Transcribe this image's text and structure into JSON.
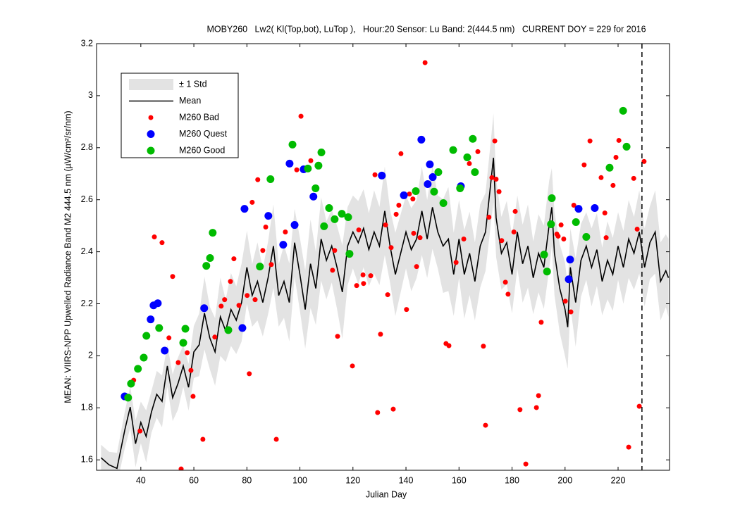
{
  "chart_data": {
    "type": "scatter",
    "title": "MOBY260   Lw2( Kl(Top,bot), LuTop ),   Hour:20 Sensor: Lu Band: 2(444.5 nm)   CURRENT DOY = 229 for 2016",
    "x_label": "Julian Day",
    "y_label": "MEAN: VIIRS-NPP Upwelled Radiance Band M2 444.5 nm (µW/cm²/sr/nm)",
    "xlim": [
      23.3,
      239.4
    ],
    "ylim": [
      1.56,
      3.2
    ],
    "xticks": [
      40,
      60,
      80,
      100,
      120,
      140,
      160,
      180,
      200,
      220
    ],
    "yticks": [
      1.6,
      1.8,
      2,
      2.2,
      2.4,
      2.6,
      2.8,
      3,
      3.2
    ],
    "legend": "upper left",
    "vline": 229,
    "series": [
      {
        "name": "± 1 Std",
        "kind": "band",
        "color": "#e3e3e3",
        "x": [
          25,
          28,
          31,
          34,
          36,
          38,
          40,
          42,
          44,
          46,
          48,
          50,
          52,
          54,
          56,
          58,
          60,
          62,
          64,
          66,
          68,
          70,
          72,
          74,
          76,
          78,
          80,
          82,
          84,
          86,
          88,
          90,
          92,
          94,
          96,
          98,
          100,
          102,
          104,
          106,
          108,
          110,
          112,
          114,
          116,
          118,
          120,
          122,
          124,
          126,
          128,
          130,
          132,
          134,
          136,
          138,
          140,
          142,
          144,
          146,
          148,
          150,
          152,
          154,
          156,
          158,
          160,
          162,
          164,
          166,
          168,
          170,
          172,
          173,
          174,
          176,
          178,
          180,
          182,
          184,
          186,
          188,
          190,
          192,
          194,
          195,
          196,
          198,
          200,
          201,
          202,
          204,
          206,
          208,
          210,
          212,
          214,
          216,
          218,
          220,
          222,
          224,
          226,
          228,
          230,
          232,
          234,
          236,
          238,
          239
        ],
        "values": [
          0.05,
          0.05,
          0.06,
          0.07,
          0.08,
          0.09,
          0.08,
          0.1,
          0.08,
          0.09,
          0.1,
          0.08,
          0.09,
          0.1,
          0.08,
          0.09,
          0.1,
          0.12,
          0.14,
          0.12,
          0.13,
          0.15,
          0.12,
          0.14,
          0.13,
          0.15,
          0.14,
          0.12,
          0.15,
          0.13,
          0.14,
          0.16,
          0.12,
          0.14,
          0.15,
          0.13,
          0.14,
          0.15,
          0.17,
          0.14,
          0.16,
          0.15,
          0.14,
          0.16,
          0.18,
          0.15,
          0.14,
          0.16,
          0.15,
          0.14,
          0.16,
          0.15,
          0.17,
          0.14,
          0.16,
          0.15,
          0.14,
          0.16,
          0.15,
          0.17,
          0.15,
          0.16,
          0.14,
          0.18,
          0.2,
          0.16,
          0.15,
          0.17,
          0.16,
          0.15,
          0.16,
          0.15,
          0.16,
          0.17,
          0.15,
          0.14,
          0.16,
          0.15,
          0.14,
          0.15,
          0.16,
          0.14,
          0.15,
          0.16,
          0.17,
          0.15,
          0.16,
          0.17,
          0.18,
          0.16,
          0.15,
          0.17,
          0.14,
          0.13,
          0.15,
          0.14,
          0.13,
          0.15,
          0.14,
          0.13,
          0.14,
          0.15,
          0.14,
          0.16,
          0.15,
          0.14,
          0.16,
          0.15,
          0.14,
          0.15
        ]
      },
      {
        "name": "Mean",
        "kind": "line",
        "color": "#000000",
        "x": [
          25,
          28,
          31,
          34,
          36,
          38,
          40,
          42,
          44,
          46,
          48,
          50,
          52,
          54,
          56,
          58,
          60,
          62,
          64,
          66,
          68,
          70,
          72,
          74,
          76,
          78,
          80,
          82,
          84,
          86,
          88,
          90,
          92,
          94,
          96,
          98,
          100,
          102,
          104,
          106,
          108,
          110,
          112,
          114,
          116,
          118,
          120,
          122,
          124,
          126,
          128,
          130,
          132,
          134,
          136,
          138,
          140,
          142,
          144,
          146,
          148,
          150,
          152,
          154,
          156,
          158,
          160,
          162,
          164,
          166,
          168,
          170,
          172,
          173,
          174,
          176,
          178,
          180,
          182,
          184,
          186,
          188,
          190,
          192,
          194,
          195,
          196,
          198,
          200,
          201,
          202,
          204,
          206,
          208,
          210,
          212,
          214,
          216,
          218,
          220,
          222,
          224,
          226,
          228,
          230,
          232,
          234,
          236,
          238,
          239
        ],
        "values": [
          1.608,
          1.581,
          1.567,
          1.717,
          1.803,
          1.662,
          1.744,
          1.69,
          1.784,
          1.852,
          1.825,
          1.961,
          1.839,
          1.893,
          1.961,
          1.879,
          2.015,
          2.042,
          2.164,
          2.069,
          2.015,
          2.15,
          2.096,
          2.178,
          2.137,
          2.205,
          2.34,
          2.232,
          2.286,
          2.205,
          2.3,
          2.422,
          2.232,
          2.286,
          2.205,
          2.435,
          2.313,
          2.178,
          2.354,
          2.259,
          2.449,
          2.367,
          2.422,
          2.34,
          2.245,
          2.422,
          2.476,
          2.435,
          2.49,
          2.408,
          2.476,
          2.422,
          2.557,
          2.422,
          2.313,
          2.394,
          2.476,
          2.408,
          2.449,
          2.557,
          2.449,
          2.571,
          2.476,
          2.422,
          2.449,
          2.313,
          2.449,
          2.313,
          2.394,
          2.286,
          2.422,
          2.476,
          2.666,
          2.761,
          2.53,
          2.394,
          2.435,
          2.313,
          2.476,
          2.354,
          2.422,
          2.3,
          2.394,
          2.34,
          2.503,
          2.571,
          2.394,
          2.259,
          2.178,
          2.11,
          2.34,
          2.205,
          2.367,
          2.422,
          2.34,
          2.408,
          2.286,
          2.367,
          2.313,
          2.422,
          2.34,
          2.449,
          2.394,
          2.476,
          2.34,
          2.435,
          2.476,
          2.286,
          2.327,
          2.3
        ]
      },
      {
        "name": "M260 Bad",
        "kind": "points",
        "color": "#ff0000",
        "size": 3.5,
        "x": [
          37.3,
          39.7,
          45.1,
          48.0,
          50.6,
          52.0,
          54.1,
          55.2,
          57.5,
          58.9,
          59.7,
          63.4,
          67.9,
          70.3,
          71.6,
          73.8,
          75.1,
          77.0,
          80.1,
          80.9,
          82.0,
          83.1,
          84.1,
          86.0,
          87.1,
          89.2,
          91.1,
          94.5,
          98.8,
          100.4,
          104.1,
          112.3,
          113.1,
          114.2,
          119.8,
          121.4,
          122.2,
          123.8,
          124.0,
          126.7,
          128.3,
          129.3,
          130.4,
          132.3,
          133.1,
          134.4,
          135.2,
          136.3,
          137.3,
          138.1,
          140.2,
          141.3,
          142.6,
          142.9,
          144.0,
          145.3,
          147.2,
          155.1,
          156.2,
          158.9,
          161.8,
          163.9,
          167.1,
          169.2,
          170.0,
          171.3,
          172.4,
          173.5,
          174.0,
          175.1,
          176.1,
          177.5,
          178.5,
          180.7,
          181.2,
          183.0,
          185.2,
          189.2,
          190.0,
          191.0,
          196.9,
          197.4,
          198.5,
          199.5,
          200.1,
          202.2,
          203.3,
          207.2,
          209.4,
          213.6,
          215.0,
          215.5,
          218.1,
          219.2,
          220.3,
          224.0,
          225.9,
          227.2,
          228.0,
          229.8
        ],
        "values": [
          1.906,
          1.711,
          2.457,
          2.435,
          2.069,
          2.305,
          1.974,
          1.565,
          2.012,
          1.944,
          1.844,
          1.679,
          2.072,
          2.191,
          2.216,
          2.286,
          2.373,
          2.194,
          2.232,
          1.931,
          2.59,
          2.216,
          2.677,
          2.405,
          2.495,
          2.351,
          1.679,
          2.476,
          2.715,
          2.921,
          2.75,
          2.329,
          2.405,
          2.075,
          1.961,
          2.27,
          2.484,
          2.311,
          2.278,
          2.308,
          2.696,
          1.782,
          2.083,
          2.503,
          2.235,
          2.416,
          1.795,
          2.544,
          2.579,
          2.777,
          2.178,
          2.622,
          2.603,
          2.471,
          2.343,
          2.454,
          3.127,
          2.047,
          2.039,
          2.359,
          2.449,
          2.739,
          2.785,
          2.037,
          1.733,
          2.533,
          2.685,
          2.826,
          2.679,
          2.631,
          2.443,
          2.283,
          2.237,
          2.476,
          2.555,
          1.793,
          1.584,
          1.801,
          1.847,
          2.129,
          2.468,
          2.46,
          2.503,
          2.449,
          2.21,
          2.169,
          2.579,
          2.734,
          2.826,
          2.685,
          2.549,
          2.454,
          2.655,
          2.763,
          2.828,
          1.649,
          2.682,
          2.487,
          1.806,
          2.747
        ]
      },
      {
        "name": "M260 Quest",
        "kind": "points",
        "color": "#0000ff",
        "size": 5.5,
        "x": [
          33.9,
          43.7,
          44.8,
          46.4,
          49.0,
          63.9,
          78.3,
          79.1,
          88.1,
          93.7,
          96.1,
          98.0,
          101.4,
          105.1,
          130.9,
          139.2,
          145.8,
          148.2,
          149.0,
          150.1,
          160.7,
          201.4,
          201.9,
          205.1,
          211.2
        ],
        "values": [
          1.844,
          2.14,
          2.194,
          2.202,
          2.02,
          2.183,
          2.107,
          2.565,
          2.538,
          2.427,
          2.739,
          2.503,
          2.717,
          2.612,
          2.693,
          2.617,
          2.831,
          2.66,
          2.736,
          2.687,
          2.652,
          2.294,
          2.37,
          2.565,
          2.568
        ]
      },
      {
        "name": "M260 Good",
        "kind": "points",
        "color": "#00bb00",
        "size": 5.5,
        "x": [
          35.2,
          36.3,
          38.9,
          41.1,
          42.1,
          46.9,
          56.0,
          56.8,
          64.7,
          66.1,
          67.1,
          73.0,
          84.9,
          88.9,
          97.2,
          103.0,
          105.9,
          107.0,
          108.1,
          109.1,
          111.0,
          113.1,
          115.8,
          118.2,
          118.7,
          143.7,
          150.6,
          152.2,
          154.1,
          157.8,
          160.4,
          163.1,
          165.2,
          166.0,
          192.1,
          193.2,
          194.7,
          195.0,
          204.1,
          208.0,
          216.8,
          221.9,
          223.2
        ],
        "values": [
          1.839,
          1.893,
          1.95,
          1.993,
          2.077,
          2.107,
          2.05,
          2.104,
          2.346,
          2.376,
          2.473,
          2.099,
          2.343,
          2.679,
          2.812,
          2.72,
          2.644,
          2.731,
          2.782,
          2.498,
          2.568,
          2.525,
          2.546,
          2.533,
          2.392,
          2.633,
          2.631,
          2.706,
          2.587,
          2.791,
          2.644,
          2.763,
          2.834,
          2.706,
          2.389,
          2.324,
          2.506,
          2.606,
          2.514,
          2.457,
          2.723,
          2.942,
          2.804
        ]
      }
    ]
  }
}
